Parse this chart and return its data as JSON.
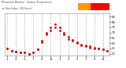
{
  "title": "Milwaukee Weather  Outdoor Temperature",
  "subtitle": "vs Heat Index  (24 Hours)",
  "bg_color": "#ffffff",
  "plot_bg": "#ffffff",
  "dot_color": "#dd0000",
  "grid_color": "#bbbbbb",
  "legend_orange": "#ff9900",
  "legend_red": "#ff0000",
  "xlim": [
    -0.5,
    23.5
  ],
  "ylim": [
    48,
    88
  ],
  "y_ticks": [
    50,
    55,
    60,
    65,
    70,
    75,
    80,
    85
  ],
  "x_tick_positions": [
    0,
    2,
    4,
    6,
    8,
    10,
    12,
    14,
    16,
    18,
    20,
    22
  ],
  "x_tick_labels": [
    "1",
    "3",
    "5",
    "7",
    "9",
    "11",
    "1",
    "3",
    "5",
    "7",
    "9",
    "11"
  ],
  "grid_x_positions": [
    0,
    2,
    4,
    6,
    8,
    10,
    12,
    14,
    16,
    18,
    20,
    22
  ],
  "temp": [
    55,
    53,
    52,
    51,
    51,
    50,
    51,
    54,
    61,
    68,
    72,
    75,
    72,
    68,
    64,
    62,
    60,
    58,
    57,
    56,
    55,
    55,
    54,
    53
  ],
  "heat": [
    55,
    53,
    52,
    51,
    51,
    50,
    51,
    54,
    62,
    70,
    75,
    78,
    75,
    70,
    66,
    63,
    61,
    59,
    58,
    57,
    56,
    55,
    54,
    53
  ]
}
